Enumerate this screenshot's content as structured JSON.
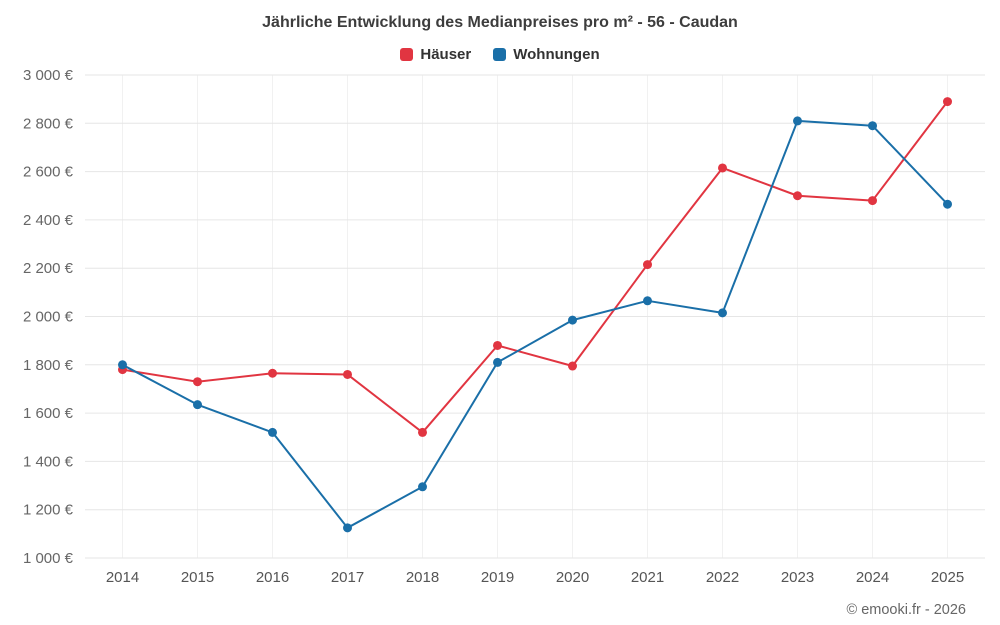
{
  "title": "Jährliche Entwicklung des Medianpreises pro m² - 56 - Caudan",
  "footer": "© emooki.fr - 2026",
  "legend": [
    {
      "label": "Häuser",
      "color": "#e13541"
    },
    {
      "label": "Wohnungen",
      "color": "#1a6fa8"
    }
  ],
  "chart_data": {
    "type": "line",
    "title": "Jährliche Entwicklung des Medianpreises pro m² - 56 - Caudan",
    "x": [
      2014,
      2015,
      2016,
      2017,
      2018,
      2019,
      2020,
      2021,
      2022,
      2023,
      2024,
      2025
    ],
    "series": [
      {
        "name": "Häuser",
        "color": "#e13541",
        "values": [
          1780,
          1730,
          1765,
          1760,
          1520,
          1880,
          1795,
          2215,
          2615,
          2500,
          2480,
          2890
        ]
      },
      {
        "name": "Wohnungen",
        "color": "#1a6fa8",
        "values": [
          1800,
          1635,
          1520,
          1125,
          1295,
          1810,
          1985,
          2065,
          2015,
          2810,
          2790,
          2465
        ]
      }
    ],
    "xlabel": "",
    "ylabel": "",
    "ylim": [
      1000,
      3000
    ],
    "ytick_step": 200,
    "ytick_suffix": " €",
    "grid": true,
    "legend_position": "top"
  }
}
